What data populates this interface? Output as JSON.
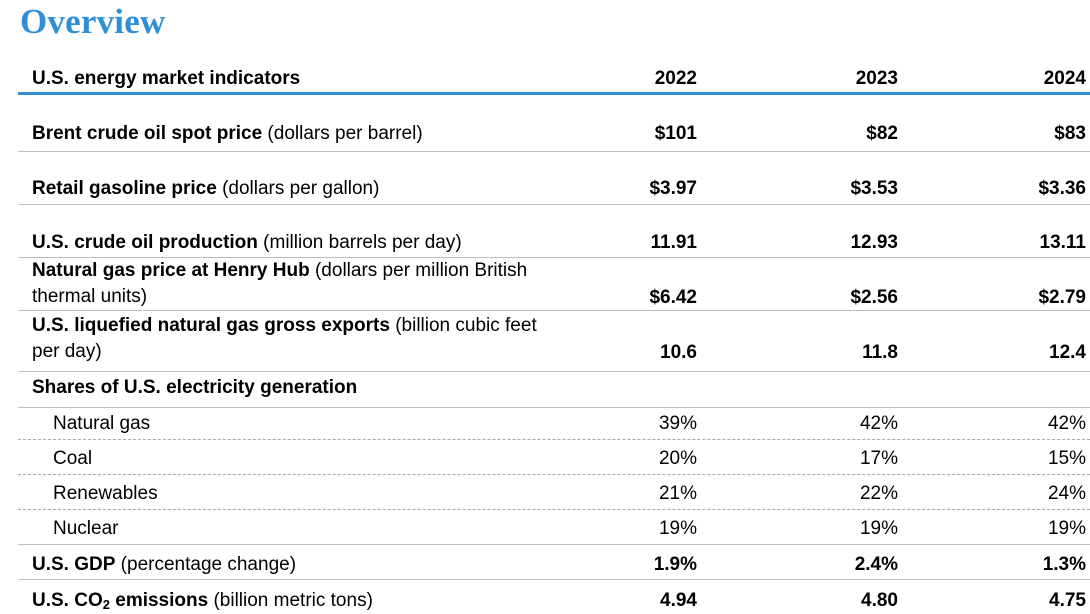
{
  "title": "Overview",
  "table": {
    "header": {
      "label": "U.S. energy market indicators",
      "years": [
        "2022",
        "2023",
        "2024"
      ]
    },
    "rows": [
      {
        "name_bold": "Brent crude oil spot price",
        "name_normal": " (dollars per barrel)",
        "values": [
          "$101",
          "$82",
          "$83"
        ]
      },
      {
        "name_bold": "Retail gasoline price",
        "name_normal": " (dollars per gallon)",
        "values": [
          "$3.97",
          "$3.53",
          "$3.36"
        ]
      },
      {
        "name_bold": "U.S. crude oil production",
        "name_normal": " (million barrels per day)",
        "values": [
          "11.91",
          "12.93",
          "13.11"
        ]
      },
      {
        "name_bold": "Natural gas price at Henry Hub",
        "name_normal": " (dollars per million British",
        "name_line2": "thermal units)",
        "values": [
          "$6.42",
          "$2.56",
          "$2.79"
        ]
      },
      {
        "name_bold": "U.S. liquefied natural gas gross exports",
        "name_normal": " (billion cubic feet",
        "name_line2": "per day)",
        "values": [
          "10.6",
          "11.8",
          "12.4"
        ]
      },
      {
        "name_bold": "Shares of U.S. electricity generation"
      },
      {
        "name": "Natural gas",
        "values": [
          "39%",
          "42%",
          "42%"
        ]
      },
      {
        "name": "Coal",
        "values": [
          "20%",
          "17%",
          "15%"
        ]
      },
      {
        "name": "Renewables",
        "values": [
          "21%",
          "22%",
          "24%"
        ]
      },
      {
        "name": "Nuclear",
        "values": [
          "19%",
          "19%",
          "19%"
        ]
      },
      {
        "name_bold": "U.S. GDP",
        "name_normal": " (percentage change)",
        "values": [
          "1.9%",
          "2.4%",
          "1.3%"
        ]
      },
      {
        "name_bold_a": "U.S. CO",
        "name_sub": "2",
        "name_bold_b": " emissions",
        "name_normal": " (billion metric tons)",
        "values": [
          "4.94",
          "4.80",
          "4.75"
        ]
      }
    ]
  }
}
